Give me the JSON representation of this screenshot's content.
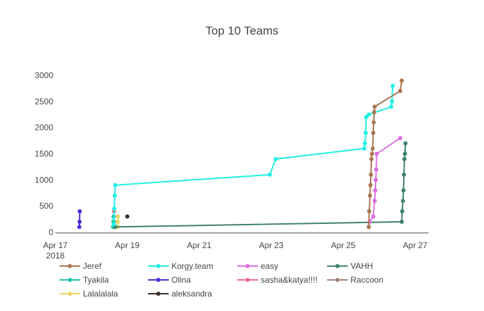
{
  "chart_data": {
    "type": "line",
    "title": "Top 10 Teams",
    "xlabel": "",
    "ylabel": "",
    "x_axis": {
      "type": "date",
      "range": [
        "2018-04-17",
        "2018-04-27 09:00"
      ],
      "ticks": [
        {
          "value": "2018-04-17",
          "label": "Apr 17",
          "sublabel": "2018"
        },
        {
          "value": "2018-04-19",
          "label": "Apr 19"
        },
        {
          "value": "2018-04-21",
          "label": "Apr 21"
        },
        {
          "value": "2018-04-23",
          "label": "Apr 23"
        },
        {
          "value": "2018-04-25",
          "label": "Apr 25"
        },
        {
          "value": "2018-04-27",
          "label": "Apr 27"
        }
      ]
    },
    "y_axis": {
      "range": [
        0,
        3000
      ],
      "ticks": [
        0,
        500,
        1000,
        1500,
        2000,
        2500,
        3000
      ]
    },
    "grid": false,
    "legend_position": "bottom",
    "series": [
      {
        "name": "Jeref",
        "color": "#a87552",
        "points": [
          [
            "2018-04-25 17:00",
            100
          ],
          [
            "2018-04-25 17:20",
            400
          ],
          [
            "2018-04-25 17:50",
            700
          ],
          [
            "2018-04-25 18:10",
            900
          ],
          [
            "2018-04-25 18:30",
            1100
          ],
          [
            "2018-04-25 18:50",
            1400
          ],
          [
            "2018-04-25 19:10",
            1500
          ],
          [
            "2018-04-25 19:40",
            1600
          ],
          [
            "2018-04-25 20:00",
            1900
          ],
          [
            "2018-04-25 20:20",
            2100
          ],
          [
            "2018-04-25 20:40",
            2300
          ],
          [
            "2018-04-25 21:00",
            2400
          ],
          [
            "2018-04-26 14:00",
            2700
          ],
          [
            "2018-04-26 15:00",
            2900
          ]
        ]
      },
      {
        "name": "Korgy.team",
        "color": "#1ef0e3",
        "points": [
          [
            "2018-04-18 15:00",
            150
          ],
          [
            "2018-04-18 15:20",
            450
          ],
          [
            "2018-04-18 15:40",
            700
          ],
          [
            "2018-04-18 16:00",
            900
          ],
          [
            "2018-04-22 23:00",
            1100
          ],
          [
            "2018-04-23 03:00",
            1400
          ],
          [
            "2018-04-25 14:00",
            1600
          ],
          [
            "2018-04-25 14:30",
            1700
          ],
          [
            "2018-04-25 15:00",
            1900
          ],
          [
            "2018-04-25 15:20",
            2200
          ],
          [
            "2018-04-25 17:00",
            2250
          ],
          [
            "2018-04-26 08:00",
            2400
          ],
          [
            "2018-04-26 08:30",
            2500
          ],
          [
            "2018-04-26 09:00",
            2800
          ]
        ]
      },
      {
        "name": "easy",
        "color": "#dd6fe0",
        "points": [
          [
            "2018-04-25 17:00",
            100
          ],
          [
            "2018-04-25 17:30",
            200
          ],
          [
            "2018-04-25 20:00",
            300
          ],
          [
            "2018-04-25 21:00",
            600
          ],
          [
            "2018-04-25 21:20",
            800
          ],
          [
            "2018-04-25 21:40",
            1000
          ],
          [
            "2018-04-25 22:00",
            1200
          ],
          [
            "2018-04-25 22:20",
            1500
          ],
          [
            "2018-04-26 14:00",
            1800
          ]
        ]
      },
      {
        "name": "VAHH",
        "color": "#3f8170",
        "points": [
          [
            "2018-04-18 16:00",
            100
          ],
          [
            "2018-04-26 15:00",
            200
          ],
          [
            "2018-04-26 15:20",
            400
          ],
          [
            "2018-04-26 15:50",
            600
          ],
          [
            "2018-04-26 16:10",
            800
          ],
          [
            "2018-04-26 16:30",
            1100
          ],
          [
            "2018-04-26 16:50",
            1400
          ],
          [
            "2018-04-26 17:10",
            1500
          ],
          [
            "2018-04-26 17:30",
            1700
          ]
        ]
      },
      {
        "name": "Tyakila",
        "color": "#18c9a7",
        "points": [
          [
            "2018-04-18 14:30",
            100
          ],
          [
            "2018-04-18 14:40",
            200
          ],
          [
            "2018-04-18 14:50",
            300
          ]
        ]
      },
      {
        "name": "Olina",
        "color": "#5129d6",
        "points": [
          [
            "2018-04-17 16:00",
            100
          ],
          [
            "2018-04-17 16:10",
            200
          ],
          [
            "2018-04-17 16:20",
            400
          ]
        ]
      },
      {
        "name": "sasha&katya!!!!",
        "color": "#e86d88",
        "points": [
          [
            "2018-04-18 15:00",
            300
          ],
          [
            "2018-04-18 15:10",
            400
          ]
        ]
      },
      {
        "name": "Raccoon",
        "color": "#a1827a",
        "points": [
          [
            "2018-04-18 15:00",
            100
          ],
          [
            "2018-04-18 15:10",
            200
          ]
        ]
      },
      {
        "name": "Lalalalala",
        "color": "#ebd460",
        "points": [
          [
            "2018-04-18 17:30",
            100
          ],
          [
            "2018-04-18 17:40",
            200
          ],
          [
            "2018-04-18 17:50",
            300
          ]
        ]
      },
      {
        "name": "aleksandra",
        "color": "#3b2c26",
        "points": [
          [
            "2018-04-19 00:00",
            300
          ]
        ]
      }
    ]
  }
}
